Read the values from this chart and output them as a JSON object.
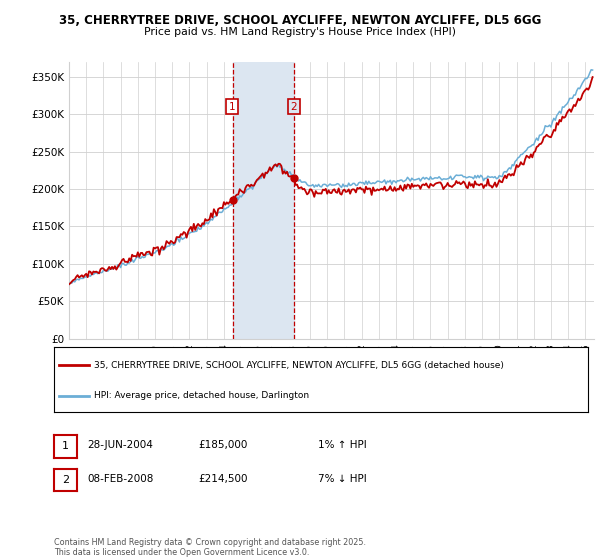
{
  "title_line1": "35, CHERRYTREE DRIVE, SCHOOL AYCLIFFE, NEWTON AYCLIFFE, DL5 6GG",
  "title_line2": "Price paid vs. HM Land Registry's House Price Index (HPI)",
  "ylim": [
    0,
    370000
  ],
  "yticks": [
    0,
    50000,
    100000,
    150000,
    200000,
    250000,
    300000,
    350000
  ],
  "ytick_labels": [
    "£0",
    "£50K",
    "£100K",
    "£150K",
    "£200K",
    "£250K",
    "£300K",
    "£350K"
  ],
  "sale1_year": 2004.5,
  "sale1_price": 185000,
  "sale1_date": "28-JUN-2004",
  "sale1_pct": "1% ↑ HPI",
  "sale2_year": 2008.1,
  "sale2_price": 214500,
  "sale2_date": "08-FEB-2008",
  "sale2_pct": "7% ↓ HPI",
  "legend_line1": "35, CHERRYTREE DRIVE, SCHOOL AYCLIFFE, NEWTON AYCLIFFE, DL5 6GG (detached house)",
  "legend_line2": "HPI: Average price, detached house, Darlington",
  "footnote": "Contains HM Land Registry data © Crown copyright and database right 2025.\nThis data is licensed under the Open Government Licence v3.0.",
  "hpi_color": "#6baed6",
  "price_color": "#c00000",
  "highlight_color": "#dce6f1",
  "grid_color": "#d0d0d0",
  "xstart": 1995,
  "xend": 2025.5
}
